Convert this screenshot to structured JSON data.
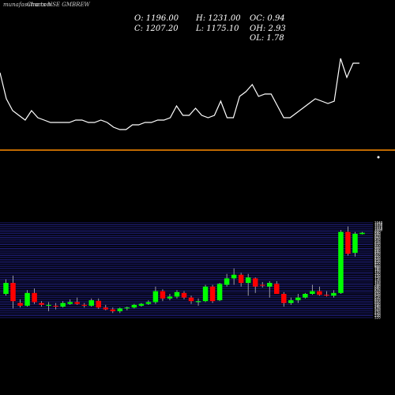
{
  "header": {
    "watermark": "munafasutra.com",
    "source_label": "Charts NSE GMBREW",
    "open_label": "O: 1196.00",
    "close_label": "C: 1207.20",
    "high_label": "H: 1231.00",
    "low_label": "L: 1175.10",
    "oc_label": "OC: 0.94",
    "oh_label": "OH: 2.93",
    "ol_label": "OL: 1.78"
  },
  "colors": {
    "background": "#000000",
    "bullish": "#00ff00",
    "bearish": "#ff0000",
    "line": "#ffffff",
    "divider": "#ff8c00",
    "grid": "#3333cc"
  },
  "chart_data": [
    {
      "type": "line",
      "title": "",
      "description_note": "indicator line (unlabeled)",
      "y": [
        64,
        75,
        80,
        82,
        84,
        80,
        83,
        84,
        85,
        85,
        85,
        85,
        84,
        84,
        85,
        85,
        84,
        85,
        87,
        88,
        88,
        86,
        86,
        85,
        85,
        84,
        84,
        83,
        78,
        82,
        82,
        79,
        82,
        83,
        82,
        76,
        83,
        83,
        74,
        72,
        69,
        74,
        73,
        73,
        78,
        83,
        83,
        81,
        79,
        77,
        75,
        76,
        77,
        76,
        58,
        66,
        60,
        60
      ],
      "ylim": [
        50,
        100
      ]
    },
    {
      "type": "candlestick",
      "title": "",
      "up_color": "#00ff00",
      "down_color": "#ff0000",
      "ylim": [
        520,
        1040
      ],
      "tick_labels": [
        "1040",
        "1030",
        "1020",
        "1010",
        "1000",
        "990",
        "980",
        "970",
        "960",
        "950",
        "940",
        "930",
        "920",
        "910",
        "900",
        "890",
        "880",
        "870",
        "860",
        "850",
        "840",
        "830",
        "820",
        "810",
        "800",
        "790",
        "780",
        "770",
        "760",
        "750",
        "740",
        "730",
        "720",
        "710",
        "700",
        "690",
        "680",
        "670",
        "660",
        "650",
        "640",
        "630",
        "620",
        "610",
        "600",
        "590",
        "580",
        "570",
        "560",
        "550",
        "540",
        "530",
        "520"
      ],
      "candles": [
        {
          "o": 650,
          "h": 730,
          "l": 640,
          "c": 710
        },
        {
          "o": 710,
          "h": 750,
          "l": 570,
          "c": 610
        },
        {
          "o": 600,
          "h": 620,
          "l": 575,
          "c": 585
        },
        {
          "o": 585,
          "h": 670,
          "l": 580,
          "c": 655
        },
        {
          "o": 655,
          "h": 680,
          "l": 595,
          "c": 605
        },
        {
          "o": 600,
          "h": 610,
          "l": 580,
          "c": 590
        },
        {
          "o": 585,
          "h": 605,
          "l": 555,
          "c": 590
        },
        {
          "o": 585,
          "h": 600,
          "l": 565,
          "c": 580
        },
        {
          "o": 580,
          "h": 610,
          "l": 575,
          "c": 600
        },
        {
          "o": 595,
          "h": 620,
          "l": 590,
          "c": 605
        },
        {
          "o": 605,
          "h": 630,
          "l": 590,
          "c": 595
        },
        {
          "o": 590,
          "h": 600,
          "l": 575,
          "c": 585
        },
        {
          "o": 585,
          "h": 625,
          "l": 580,
          "c": 615
        },
        {
          "o": 612,
          "h": 625,
          "l": 568,
          "c": 575
        },
        {
          "o": 575,
          "h": 590,
          "l": 560,
          "c": 565
        },
        {
          "o": 565,
          "h": 575,
          "l": 545,
          "c": 555
        },
        {
          "o": 555,
          "h": 575,
          "l": 545,
          "c": 570
        },
        {
          "o": 570,
          "h": 580,
          "l": 560,
          "c": 575
        },
        {
          "o": 575,
          "h": 595,
          "l": 570,
          "c": 590
        },
        {
          "o": 585,
          "h": 600,
          "l": 580,
          "c": 595
        },
        {
          "o": 595,
          "h": 615,
          "l": 590,
          "c": 605
        },
        {
          "o": 605,
          "h": 690,
          "l": 595,
          "c": 665
        },
        {
          "o": 665,
          "h": 675,
          "l": 610,
          "c": 625
        },
        {
          "o": 625,
          "h": 650,
          "l": 615,
          "c": 635
        },
        {
          "o": 635,
          "h": 670,
          "l": 625,
          "c": 660
        },
        {
          "o": 655,
          "h": 665,
          "l": 620,
          "c": 630
        },
        {
          "o": 630,
          "h": 640,
          "l": 595,
          "c": 610
        },
        {
          "o": 605,
          "h": 625,
          "l": 585,
          "c": 610
        },
        {
          "o": 610,
          "h": 700,
          "l": 605,
          "c": 690
        },
        {
          "o": 690,
          "h": 700,
          "l": 600,
          "c": 610
        },
        {
          "o": 615,
          "h": 710,
          "l": 610,
          "c": 705
        },
        {
          "o": 700,
          "h": 760,
          "l": 690,
          "c": 735
        },
        {
          "o": 735,
          "h": 790,
          "l": 700,
          "c": 755
        },
        {
          "o": 755,
          "h": 765,
          "l": 690,
          "c": 710
        },
        {
          "o": 710,
          "h": 760,
          "l": 640,
          "c": 740
        },
        {
          "o": 735,
          "h": 740,
          "l": 655,
          "c": 690
        },
        {
          "o": 700,
          "h": 715,
          "l": 685,
          "c": 695
        },
        {
          "o": 690,
          "h": 720,
          "l": 630,
          "c": 710
        },
        {
          "o": 705,
          "h": 720,
          "l": 650,
          "c": 650
        },
        {
          "o": 650,
          "h": 660,
          "l": 580,
          "c": 600
        },
        {
          "o": 600,
          "h": 630,
          "l": 590,
          "c": 615
        },
        {
          "o": 615,
          "h": 650,
          "l": 600,
          "c": 630
        },
        {
          "o": 630,
          "h": 655,
          "l": 625,
          "c": 650
        },
        {
          "o": 650,
          "h": 700,
          "l": 645,
          "c": 665
        },
        {
          "o": 665,
          "h": 690,
          "l": 640,
          "c": 645
        },
        {
          "o": 645,
          "h": 665,
          "l": 635,
          "c": 640
        },
        {
          "o": 640,
          "h": 670,
          "l": 630,
          "c": 655
        },
        {
          "o": 655,
          "h": 1000,
          "l": 650,
          "c": 990
        },
        {
          "o": 990,
          "h": 1020,
          "l": 860,
          "c": 870
        },
        {
          "o": 875,
          "h": 990,
          "l": 855,
          "c": 980
        },
        {
          "o": 978,
          "h": 990,
          "l": 976,
          "c": 985
        }
      ]
    }
  ]
}
